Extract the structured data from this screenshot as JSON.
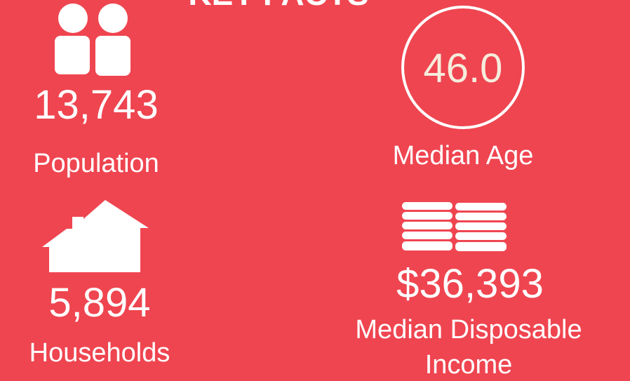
{
  "title": "KEY FACTS",
  "facts": [
    {
      "value": "13,743",
      "label": "Population"
    },
    {
      "value": "46.0",
      "label": "Median Age"
    },
    {
      "value": "5,894",
      "label": "Households"
    },
    {
      "value": "$36,393",
      "label": "Median Disposable Income"
    }
  ]
}
